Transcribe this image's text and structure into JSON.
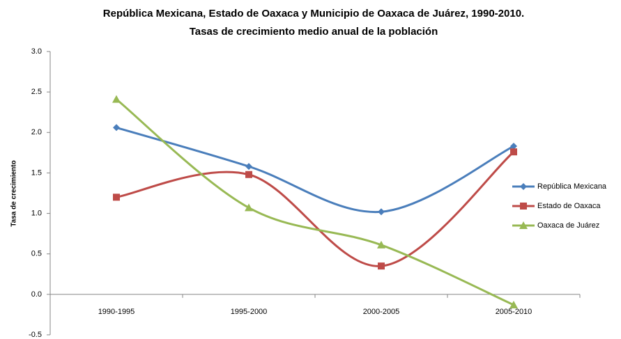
{
  "chart_data": {
    "type": "line",
    "smooth": true,
    "title": "República Mexicana, Estado de Oaxaca y Municipio de Oaxaca de Juárez, 1990-2010.",
    "subtitle": "Tasas de crecimiento medio anual de la población",
    "y_label": "Tasa de crecimiento",
    "categories": [
      "1990-1995",
      "1995-2000",
      "2000-2005",
      "2005-2010"
    ],
    "series": [
      {
        "name": "República Mexicana",
        "color": "#4a7ebb",
        "marker": "diamond",
        "values": [
          2.06,
          1.58,
          1.02,
          1.83
        ]
      },
      {
        "name": "Estado de Oaxaca",
        "color": "#be4b48",
        "marker": "square",
        "values": [
          1.2,
          1.48,
          0.35,
          1.76
        ]
      },
      {
        "name": "Oaxaca de Juárez",
        "color": "#98b954",
        "marker": "triangle",
        "values": [
          2.41,
          1.07,
          0.61,
          -0.13
        ]
      }
    ],
    "ylim": [
      -0.5,
      3.0
    ],
    "yticks": [
      {
        "value": 3.0,
        "label": "3.0"
      },
      2.5,
      {
        "value": 2.0,
        "label": "2.0"
      },
      1.5,
      {
        "value": 1.0,
        "label": "1.0"
      },
      0.5,
      {
        "value": 0.0,
        "label": "0.0"
      },
      -0.5
    ],
    "grid": false,
    "legend": "right"
  }
}
